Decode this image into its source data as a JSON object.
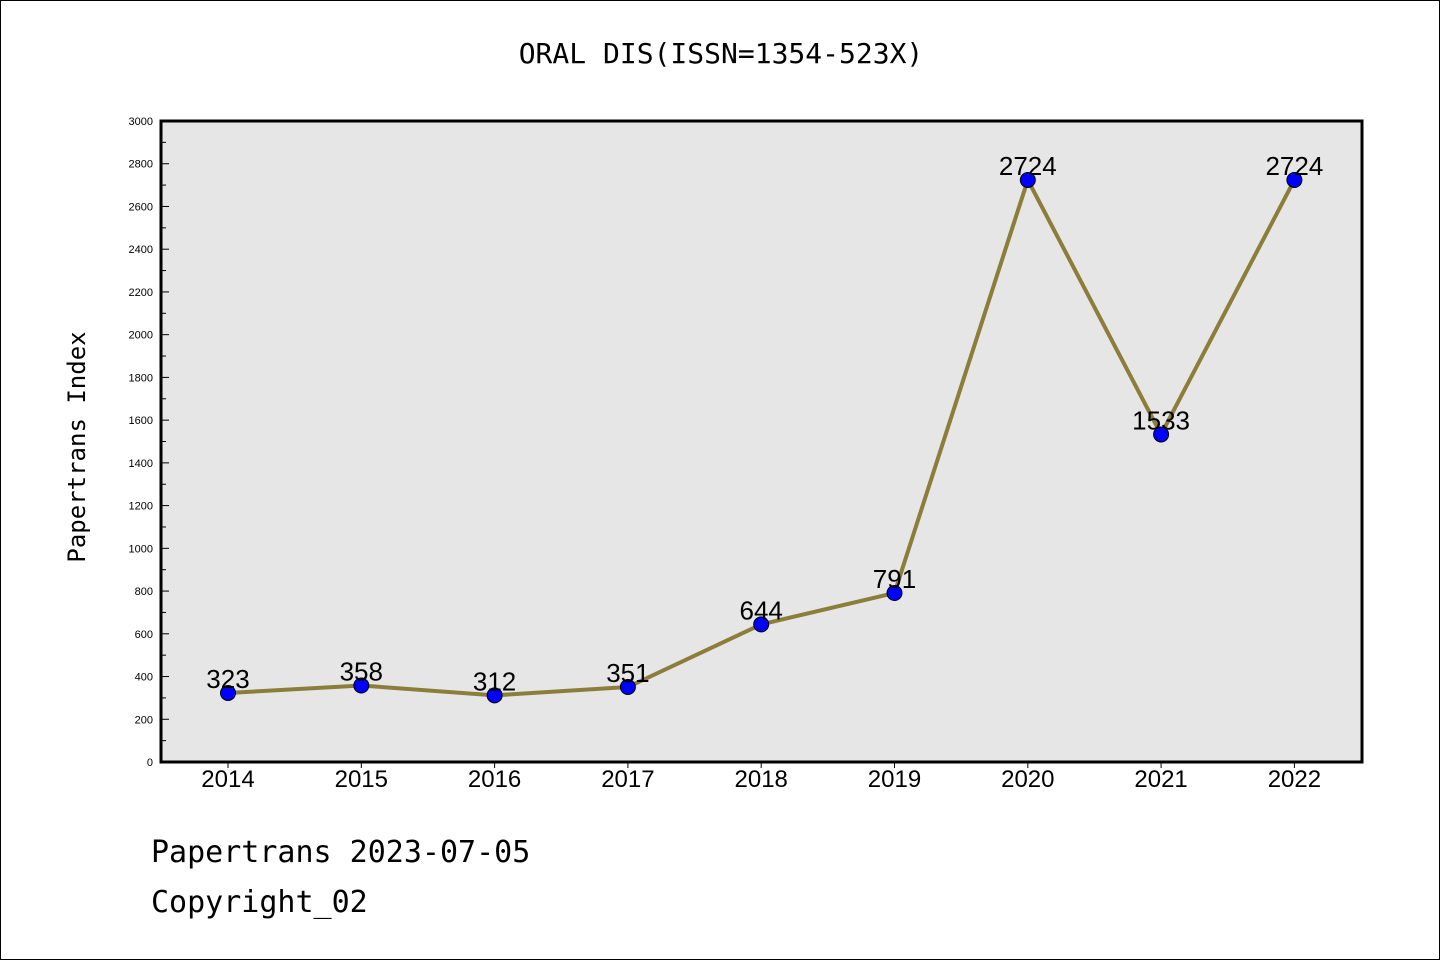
{
  "chart_data": {
    "type": "line",
    "title": "ORAL DIS(ISSN=1354-523X)",
    "xlabel": "",
    "ylabel": "Papertrans Index",
    "categories": [
      "2014",
      "2015",
      "2016",
      "2017",
      "2018",
      "2019",
      "2020",
      "2021",
      "2022"
    ],
    "series": [
      {
        "values": [
          323,
          358,
          312,
          351,
          644,
          791,
          2724,
          1533,
          2724
        ]
      }
    ],
    "data_labels": [
      "323",
      "358",
      "312",
      "351",
      "644",
      "791",
      "2724",
      "1533",
      "2724"
    ],
    "ylim": [
      0,
      3000
    ],
    "yticks": [
      0,
      200,
      400,
      600,
      800,
      1000,
      1200,
      1400,
      1600,
      1800,
      2000,
      2200,
      2400,
      2600,
      2800,
      3000
    ],
    "grid": false,
    "colors": {
      "line": "#8b7d3a",
      "marker": "#0000ff",
      "plot_bg": "#e6e6e6"
    }
  },
  "footer": {
    "date_line": "Papertrans 2023-07-05",
    "copyright": "Copyright_02"
  }
}
